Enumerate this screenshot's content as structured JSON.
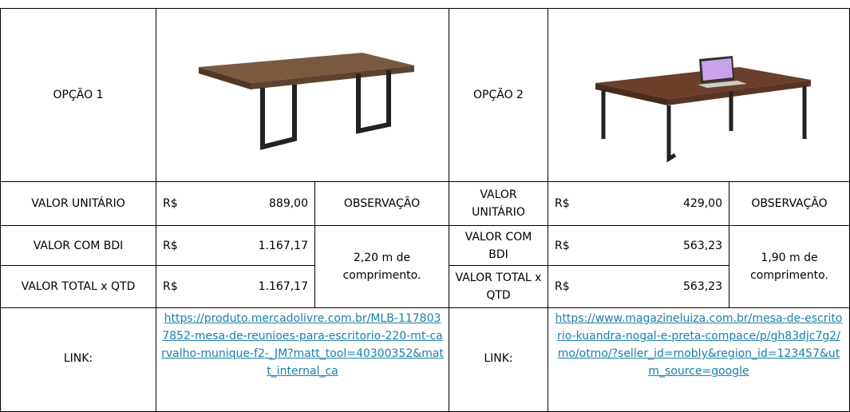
{
  "option1": {
    "label": "OPÇÃO 1",
    "rows": [
      {
        "label": "VALOR UNITÁRIO",
        "currency": "R$",
        "amount": "889,00"
      },
      {
        "label": "VALOR COM BDI",
        "currency": "R$",
        "amount": "1.167,17"
      },
      {
        "label": "VALOR TOTAL x QTD",
        "currency": "R$",
        "amount": "1.167,17"
      }
    ],
    "observation_header": "OBSERVAÇÃO",
    "observation": "2,20 m de comprimento.",
    "link_label": "LINK:",
    "link": "https://produto.mercadolivre.com.br/MLB-1178037852-mesa-de-reunioes-para-escritorio-220-mt-carvalho-munique-f2-_JM?matt_tool=40300352&matt_internal_ca"
  },
  "option2": {
    "label": "OPÇÃO 2",
    "rows": [
      {
        "label": "VALOR UNITÁRIO",
        "currency": "R$",
        "amount": "429,00"
      },
      {
        "label": "VALOR COM BDI",
        "currency": "R$",
        "amount": "563,23"
      },
      {
        "label": "VALOR TOTAL x QTD",
        "currency": "R$",
        "amount": "563,23"
      }
    ],
    "observation_header": "OBSERVAÇÃO",
    "observation": "1,90 m de comprimento.",
    "link_label": "LINK:",
    "link": "https://www.magazineluiza.com.br/mesa-de-escritorio-kuandra-nogal-e-preta-compace/p/gh83djc7g2/mo/otmo/?seller_id=mobly&region_id=123457&utm_source=google"
  }
}
